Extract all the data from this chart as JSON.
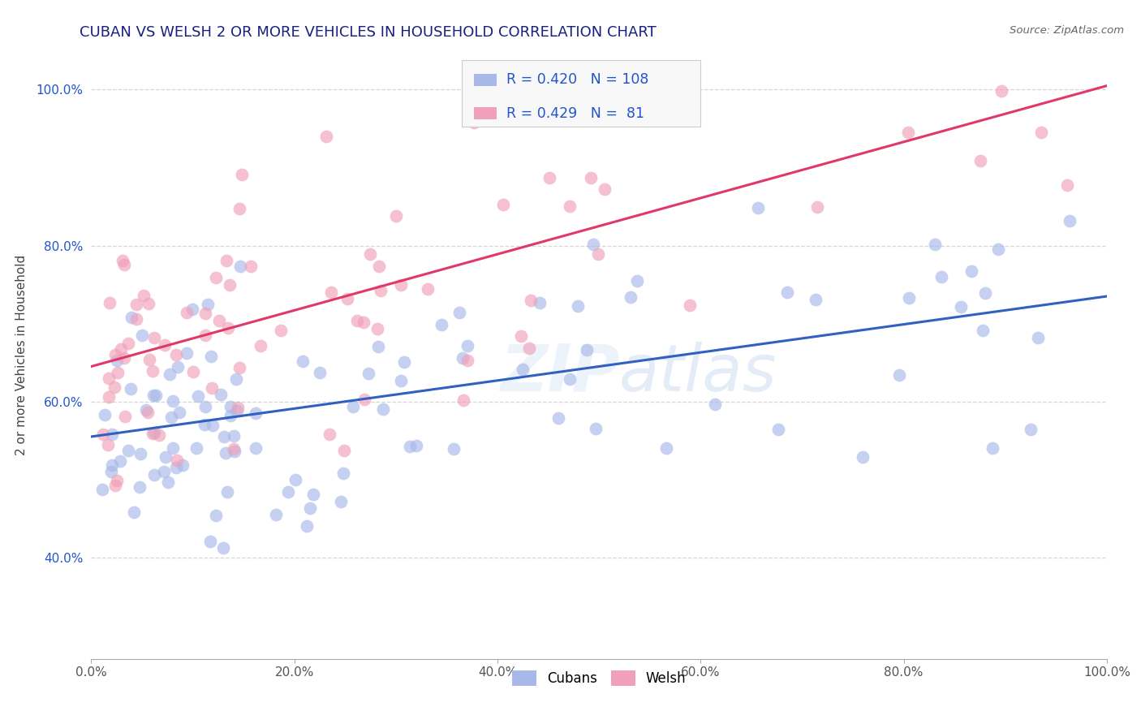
{
  "title": "CUBAN VS WELSH 2 OR MORE VEHICLES IN HOUSEHOLD CORRELATION CHART",
  "source": "Source: ZipAtlas.com",
  "ylabel": "2 or more Vehicles in Household",
  "xlabel": "",
  "watermark": "ZIPAtlas",
  "xlim": [
    0.0,
    1.0
  ],
  "ylim": [
    0.27,
    1.05
  ],
  "xticks": [
    0.0,
    0.2,
    0.4,
    0.6,
    0.8,
    1.0
  ],
  "yticks": [
    0.4,
    0.6,
    0.8,
    1.0
  ],
  "xtick_labels": [
    "0.0%",
    "20.0%",
    "40.0%",
    "60.0%",
    "80.0%",
    "100.0%"
  ],
  "ytick_labels": [
    "40.0%",
    "60.0%",
    "80.0%",
    "100.0%"
  ],
  "cubans_R": 0.42,
  "cubans_N": 108,
  "welsh_R": 0.429,
  "welsh_N": 81,
  "cubans_color": "#a8b8e8",
  "welsh_color": "#f0a0b8",
  "line_blue": "#3060c0",
  "line_pink": "#e03868",
  "legend_box_color_cubans": "#a8b8e8",
  "legend_box_color_welsh": "#f0a0b8",
  "title_color": "#1a2080",
  "source_color": "#666666",
  "annotation_color": "#2255cc",
  "cubans_line_x": [
    0.0,
    1.0
  ],
  "cubans_line_y": [
    0.555,
    0.735
  ],
  "welsh_line_x": [
    0.0,
    1.0
  ],
  "welsh_line_y": [
    0.645,
    1.005
  ]
}
